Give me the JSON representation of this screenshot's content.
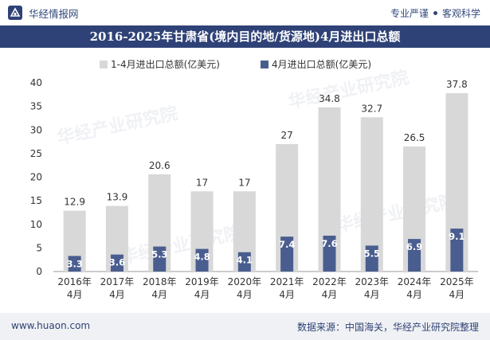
{
  "header": {
    "brand_name": "华经情报网",
    "tagline_left": "专业严谨",
    "tagline_right": "客观科学"
  },
  "footer": {
    "website": "www.huaon.com",
    "source": "数据来源：中国海关，华经产业研究院整理"
  },
  "watermark": {
    "text": "华经产业研究院",
    "url": "www.huaon.com"
  },
  "chart_data": {
    "type": "bar",
    "title": "2016-2025年甘肃省(境内目的地/货源地)4月进出口总额",
    "categories": [
      "2016年\n4月",
      "2017年\n4月",
      "2018年\n4月",
      "2019年\n4月",
      "2020年\n4月",
      "2021年\n4月",
      "2022年\n4月",
      "2023年\n4月",
      "2024年\n4月",
      "2025年\n4月"
    ],
    "series": [
      {
        "name": "1-4月进出口总额(亿美元)",
        "color": "#d8d8d8",
        "label_color": "#333333",
        "values": [
          12.9,
          13.9,
          20.6,
          17,
          17,
          27,
          34.8,
          32.7,
          26.5,
          37.8
        ]
      },
      {
        "name": "4月进出口总额(亿美元)",
        "color": "#4a5d8f",
        "label_color": "#ffffff",
        "values": [
          3.3,
          3.6,
          5.3,
          4.8,
          4.1,
          7.4,
          7.6,
          5.5,
          6.9,
          9.1
        ]
      }
    ],
    "ylim": [
      0,
      40
    ],
    "yticks": [
      0,
      5,
      10,
      15,
      20,
      25,
      30,
      35,
      40
    ],
    "grid": false,
    "legend": "top"
  }
}
